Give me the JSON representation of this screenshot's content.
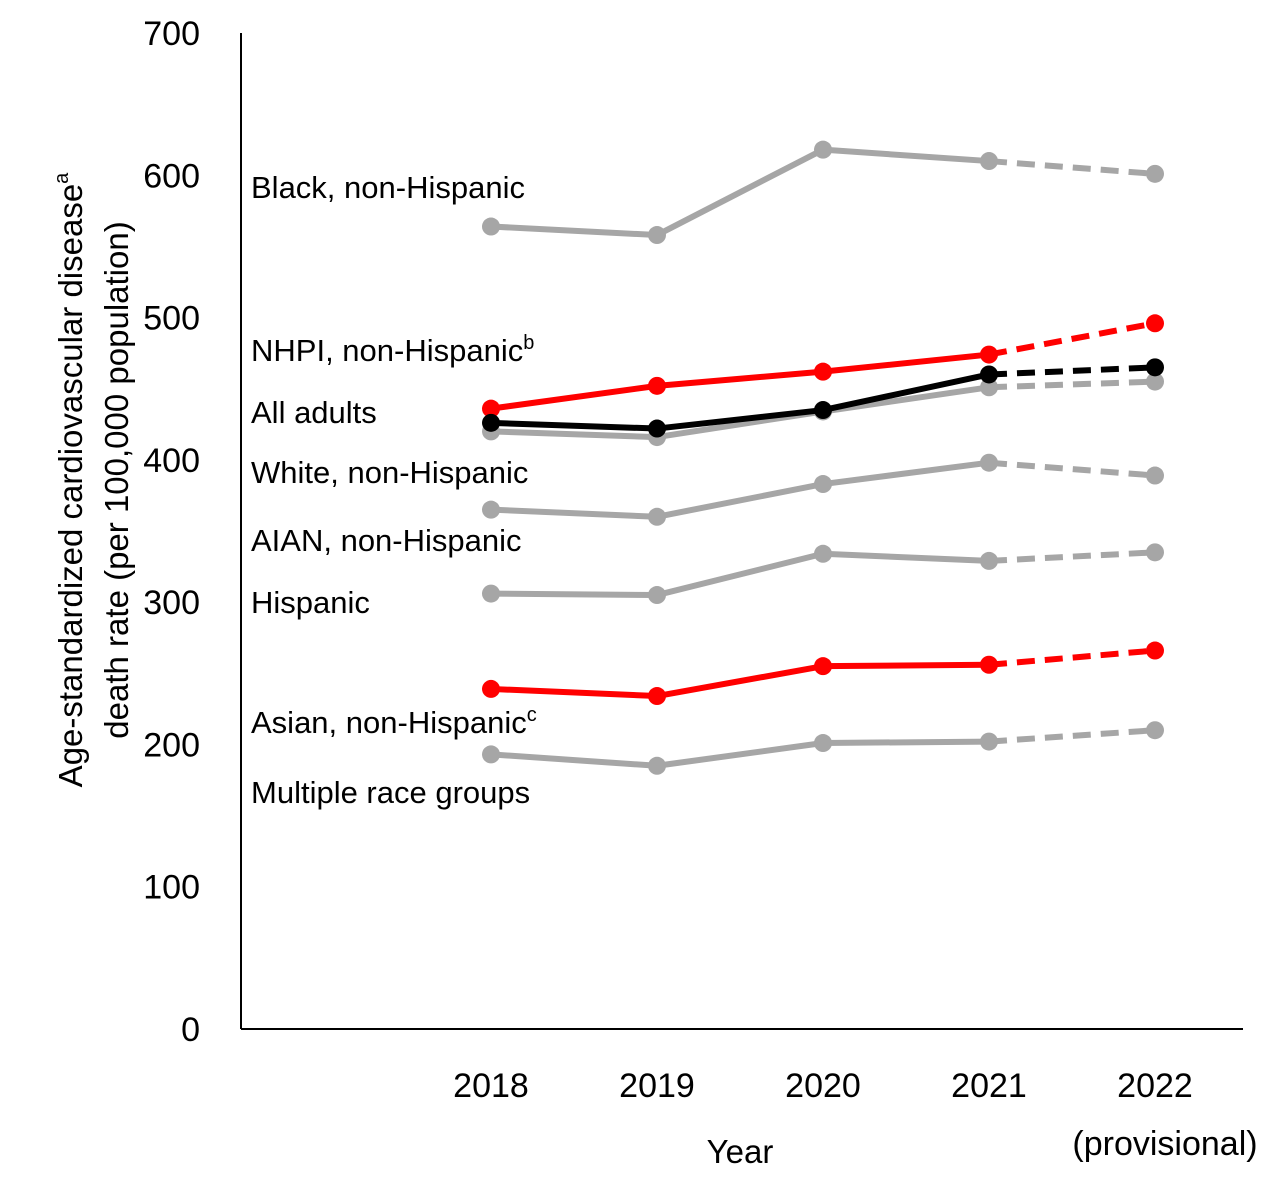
{
  "chart_data": {
    "type": "line",
    "xlabel": "Year",
    "ylabel_line1": "Age-standardized cardiovascular disease",
    "ylabel_sup": "a",
    "ylabel_line2": "death rate (per 100,000 population)",
    "ylim": [
      0,
      700
    ],
    "yticks": [
      0,
      100,
      200,
      300,
      400,
      500,
      600,
      700
    ],
    "grid": false,
    "categories": [
      "2018",
      "2019",
      "2020",
      "2021",
      "2022"
    ],
    "category_note": "(provisional)",
    "provisional_from_index": 3,
    "colors": {
      "highlight": "#ff0000",
      "overall": "#000000",
      "other": "#a6a6a6"
    },
    "series": [
      {
        "name": "Black, non-Hispanic",
        "sup": "",
        "color_key": "other",
        "values": [
          564,
          558,
          618,
          610,
          601
        ]
      },
      {
        "name": "NHPI, non-Hispanic",
        "sup": "b",
        "color_key": "highlight",
        "values": [
          436,
          452,
          462,
          474,
          496
        ]
      },
      {
        "name": "All adults",
        "sup": "",
        "color_key": "overall",
        "values": [
          426,
          422,
          435,
          460,
          465
        ]
      },
      {
        "name": "White, non-Hispanic",
        "sup": "",
        "color_key": "other",
        "values": [
          420,
          416,
          434,
          451,
          455
        ]
      },
      {
        "name": "AIAN, non-Hispanic",
        "sup": "",
        "color_key": "other",
        "values": [
          365,
          360,
          383,
          398,
          389
        ]
      },
      {
        "name": "Hispanic",
        "sup": "",
        "color_key": "other",
        "values": [
          306,
          305,
          334,
          329,
          335
        ]
      },
      {
        "name": "Asian, non-Hispanic",
        "sup": "c",
        "color_key": "highlight",
        "values": [
          239,
          234,
          255,
          256,
          266
        ]
      },
      {
        "name": "Multiple race groups",
        "sup": "",
        "color_key": "other",
        "values": [
          193,
          185,
          201,
          202,
          210
        ]
      }
    ]
  }
}
